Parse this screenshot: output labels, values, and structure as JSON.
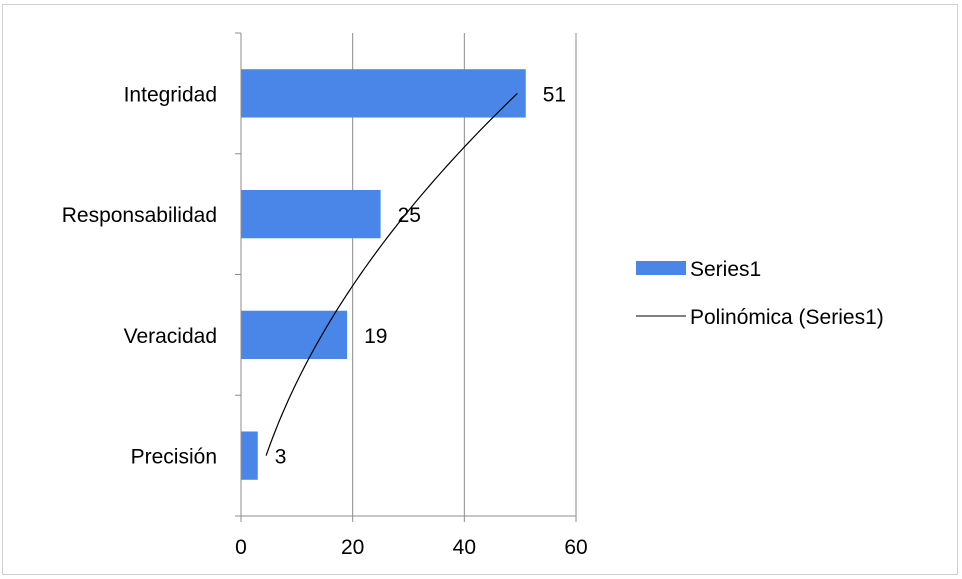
{
  "chart_data": {
    "type": "bar",
    "orientation": "horizontal",
    "categories": [
      "Precisión",
      "Veracidad",
      "Responsabilidad",
      "Integridad"
    ],
    "series": [
      {
        "name": "Series1",
        "values": [
          3,
          19,
          25,
          51
        ],
        "color": "#4a86e8"
      }
    ],
    "trendline": {
      "name": "Polinómica (Series1)",
      "kind": "polynomial",
      "color": "#000000"
    },
    "xlim": [
      0,
      60
    ],
    "xticks": [
      0,
      20,
      40,
      60
    ],
    "data_labels": true,
    "grid": "vertical",
    "legend": "right"
  }
}
